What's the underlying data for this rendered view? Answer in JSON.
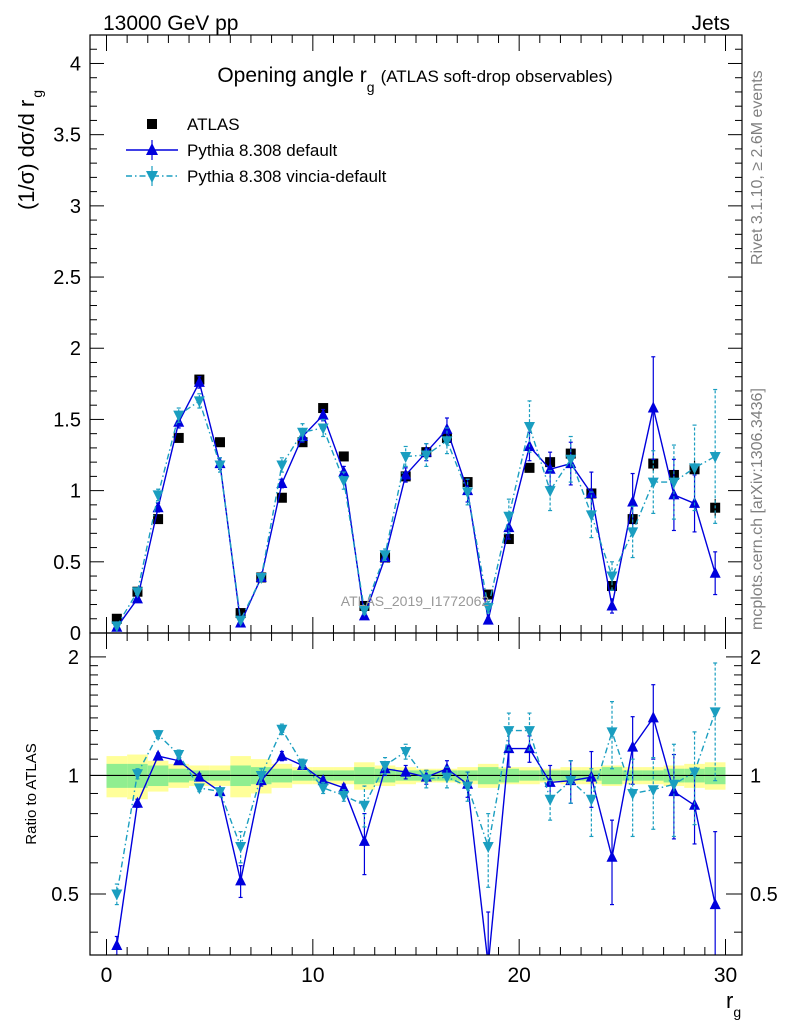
{
  "header": {
    "left": "13000 GeV pp",
    "right": "Jets"
  },
  "side_labels": {
    "rivet": "Rivet 3.1.10, ≥ 2.6M events",
    "mcplots": "mcplots.cern.ch [arXiv:1306.3436]"
  },
  "watermark": "ATLAS_2019_I1772062",
  "chart_data": [
    {
      "type": "scatter",
      "title": "Opening angle r",
      "title_sub": "g",
      "title_extra": "(ATLAS soft-drop observables)",
      "ylabel": "(1/σ) dσ/d r",
      "ylabel_sub": "g",
      "xlim": [
        -0.8,
        30.8
      ],
      "ylim": [
        0,
        4.2
      ],
      "yticks": [
        0,
        0.5,
        1,
        1.5,
        2,
        2.5,
        3,
        3.5,
        4
      ],
      "ytick_labels": [
        "0",
        "0.5",
        "1",
        "1.5",
        "2",
        "2.5",
        "3",
        "3.5",
        "4"
      ],
      "legend_position": "top-left",
      "x": [
        0.5,
        1.5,
        2.5,
        3.5,
        4.5,
        5.5,
        6.5,
        7.5,
        8.5,
        9.5,
        10.5,
        11.5,
        12.5,
        13.5,
        14.5,
        15.5,
        16.5,
        17.5,
        18.5,
        19.5,
        20.5,
        21.5,
        22.5,
        23.5,
        24.5,
        25.5,
        26.5,
        27.5,
        28.5,
        29.5
      ],
      "series": [
        {
          "name": "ATLAS",
          "color": "#000000",
          "marker": "square",
          "values": [
            0.1,
            0.29,
            0.8,
            1.37,
            1.78,
            1.34,
            0.14,
            0.39,
            0.95,
            1.34,
            1.58,
            1.24,
            0.19,
            0.53,
            1.1,
            1.27,
            1.37,
            1.06,
            0.27,
            0.66,
            1.16,
            1.2,
            1.26,
            0.98,
            0.33,
            0.8,
            1.19,
            1.11,
            1.15,
            0.88
          ],
          "errors": [
            0.01,
            0.01,
            0.02,
            0.02,
            0.02,
            0.02,
            0.01,
            0.01,
            0.02,
            0.02,
            0.02,
            0.02,
            0.01,
            0.02,
            0.02,
            0.02,
            0.02,
            0.02,
            0.01,
            0.02,
            0.03,
            0.04,
            0.04,
            0.04,
            0.02,
            0.04,
            0.05,
            0.05,
            0.06,
            0.06
          ]
        },
        {
          "name": "Pythia 8.308 default",
          "color": "#0000dd",
          "marker": "triangle-up",
          "line": "solid",
          "values": [
            0.04,
            0.24,
            0.88,
            1.48,
            1.76,
            1.19,
            0.07,
            0.39,
            1.05,
            1.38,
            1.53,
            1.13,
            0.12,
            0.53,
            1.11,
            1.27,
            1.43,
            1.0,
            0.09,
            0.74,
            1.31,
            1.15,
            1.19,
            0.98,
            0.19,
            0.92,
            1.58,
            0.97,
            0.91,
            0.42
          ],
          "errors": [
            0.01,
            0.02,
            0.03,
            0.04,
            0.04,
            0.04,
            0.01,
            0.02,
            0.03,
            0.04,
            0.04,
            0.04,
            0.02,
            0.03,
            0.05,
            0.06,
            0.08,
            0.08,
            0.02,
            0.08,
            0.1,
            0.12,
            0.15,
            0.15,
            0.05,
            0.2,
            0.36,
            0.25,
            0.2,
            0.15
          ]
        },
        {
          "name": "Pythia 8.308 vincia-default",
          "color": "#1a9ec0",
          "marker": "triangle-down",
          "line": "dash-dot",
          "values": [
            0.05,
            0.29,
            0.97,
            1.53,
            1.63,
            1.18,
            0.09,
            0.39,
            1.18,
            1.41,
            1.44,
            1.07,
            0.16,
            0.55,
            1.24,
            1.25,
            1.35,
            0.99,
            0.18,
            0.82,
            1.45,
            1.0,
            1.22,
            0.83,
            0.4,
            0.71,
            1.06,
            1.06,
            1.16,
            1.24
          ],
          "errors": [
            0.01,
            0.02,
            0.04,
            0.05,
            0.05,
            0.05,
            0.02,
            0.02,
            0.05,
            0.06,
            0.06,
            0.06,
            0.03,
            0.04,
            0.07,
            0.08,
            0.09,
            0.09,
            0.04,
            0.12,
            0.18,
            0.14,
            0.16,
            0.16,
            0.1,
            0.18,
            0.22,
            0.26,
            0.3,
            0.47
          ]
        }
      ]
    },
    {
      "type": "scatter",
      "ylabel": "Ratio to ATLAS",
      "xlabel": "r",
      "xlabel_sub": "g",
      "xlim": [
        -0.8,
        30.8
      ],
      "ylim": [
        0.35,
        2.3
      ],
      "xticks": [
        0,
        10,
        20,
        30
      ],
      "xtick_labels": [
        "0",
        "10",
        "20",
        "30"
      ],
      "yticks": [
        0.5,
        1,
        2
      ],
      "ytick_labels": [
        "0.5",
        "1",
        "2"
      ],
      "band_inner_color": "#90ee90",
      "band_outer_color": "#ffff99",
      "band_inner": [
        0.07,
        0.07,
        0.06,
        0.04,
        0.03,
        0.03,
        0.06,
        0.05,
        0.04,
        0.03,
        0.03,
        0.03,
        0.05,
        0.04,
        0.03,
        0.03,
        0.03,
        0.03,
        0.05,
        0.04,
        0.03,
        0.03,
        0.03,
        0.03,
        0.05,
        0.03,
        0.03,
        0.04,
        0.04,
        0.05
      ],
      "band_outer": [
        0.12,
        0.13,
        0.09,
        0.07,
        0.06,
        0.06,
        0.12,
        0.1,
        0.07,
        0.05,
        0.05,
        0.05,
        0.08,
        0.06,
        0.05,
        0.04,
        0.04,
        0.05,
        0.07,
        0.05,
        0.05,
        0.04,
        0.05,
        0.05,
        0.06,
        0.05,
        0.05,
        0.06,
        0.07,
        0.08
      ],
      "x": [
        0.5,
        1.5,
        2.5,
        3.5,
        4.5,
        5.5,
        6.5,
        7.5,
        8.5,
        9.5,
        10.5,
        11.5,
        12.5,
        13.5,
        14.5,
        15.5,
        16.5,
        17.5,
        18.5,
        19.5,
        20.5,
        21.5,
        22.5,
        23.5,
        24.5,
        25.5,
        26.5,
        27.5,
        28.5,
        29.5
      ],
      "series": [
        {
          "name": "Pythia 8.308 default",
          "color": "#0000dd",
          "marker": "triangle-up",
          "line": "solid",
          "values": [
            0.37,
            0.85,
            1.12,
            1.09,
            0.99,
            0.91,
            0.54,
            0.97,
            1.12,
            1.06,
            0.97,
            0.93,
            0.68,
            1.04,
            1.02,
            0.99,
            1.04,
            0.95,
            0.33,
            1.17,
            1.17,
            0.96,
            0.97,
            0.99,
            0.62,
            1.18,
            1.4,
            0.91,
            0.84,
            0.47
          ],
          "errors": [
            0.02,
            0.02,
            0.02,
            0.02,
            0.02,
            0.02,
            0.05,
            0.03,
            0.03,
            0.02,
            0.02,
            0.02,
            0.12,
            0.04,
            0.04,
            0.04,
            0.05,
            0.07,
            0.12,
            0.12,
            0.09,
            0.1,
            0.12,
            0.16,
            0.15,
            0.23,
            0.3,
            0.22,
            0.17,
            0.25
          ]
        },
        {
          "name": "Pythia 8.308 vincia-default",
          "color": "#1a9ec0",
          "marker": "triangle-down",
          "line": "dash-dot",
          "values": [
            0.5,
            1.01,
            1.27,
            1.13,
            0.93,
            0.91,
            0.66,
            1.0,
            1.31,
            1.07,
            0.93,
            0.89,
            0.84,
            1.06,
            1.15,
            0.98,
            0.99,
            0.94,
            0.66,
            1.3,
            1.3,
            0.87,
            0.97,
            0.87,
            1.29,
            0.9,
            0.92,
            0.95,
            1.02,
            1.45
          ],
          "errors": [
            0.03,
            0.03,
            0.03,
            0.03,
            0.02,
            0.02,
            0.06,
            0.04,
            0.04,
            0.03,
            0.03,
            0.03,
            0.1,
            0.05,
            0.05,
            0.05,
            0.06,
            0.08,
            0.14,
            0.14,
            0.14,
            0.1,
            0.12,
            0.17,
            0.25,
            0.2,
            0.19,
            0.25,
            0.27,
            0.48
          ]
        }
      ]
    }
  ]
}
